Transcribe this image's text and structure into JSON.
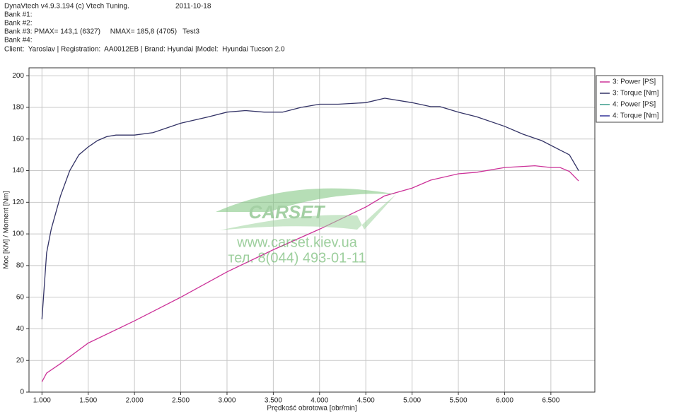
{
  "header": {
    "software": "DynaVtech v4.9.3.194 (c) Vtech Tuning.",
    "date": "2011-10-18",
    "bank1": "Bank #1:",
    "bank2": "Bank #2:",
    "bank3": "Bank #3: PMAX= 143,1 (6327)     NMAX= 185,8 (4705)   Test3",
    "bank4": "Bank #4:",
    "client": "Client:  Yaroslav | Registration:  AA0012EB | Brand: Hyundai |Model:  Hyundai Tucson 2.0"
  },
  "watermark": {
    "logo": "CARSET",
    "url": "www.carset.kiev.ua",
    "phone": "тел. 8(044) 493-01-11"
  },
  "chart_data": {
    "type": "line",
    "x_label": "Prędkość obrotowa [obr/min]",
    "y_label": "Moc [KM] / Moment [Nm]",
    "xlim": [
      860,
      6975
    ],
    "ylim": [
      0,
      205
    ],
    "grid": true,
    "legend": "top-right",
    "xticks": [
      {
        "value": 1000,
        "label": "1.000"
      },
      {
        "value": 1500,
        "label": "1.500"
      },
      {
        "value": 2000,
        "label": "2.000"
      },
      {
        "value": 2500,
        "label": "2.500"
      },
      {
        "value": 3000,
        "label": "3.000"
      },
      {
        "value": 3500,
        "label": "3.500"
      },
      {
        "value": 4000,
        "label": "4.000"
      },
      {
        "value": 4500,
        "label": "4.500"
      },
      {
        "value": 5000,
        "label": "5.000"
      },
      {
        "value": 5500,
        "label": "5.500"
      },
      {
        "value": 6000,
        "label": "6.000"
      },
      {
        "value": 6500,
        "label": "6.500"
      }
    ],
    "yticks": [
      0,
      20,
      40,
      60,
      80,
      100,
      120,
      140,
      160,
      180,
      200
    ],
    "series": [
      {
        "name": "3: Power [PS]",
        "color": "#cc3399",
        "x": [
          1000,
          1050,
          1200,
          1500,
          2000,
          2200,
          2500,
          3000,
          3500,
          4000,
          4500,
          4700,
          5000,
          5200,
          5500,
          5700,
          6000,
          6327,
          6500,
          6600,
          6700,
          6800
        ],
        "values": [
          6.5,
          12,
          18,
          31,
          45,
          51,
          60,
          76,
          90,
          103,
          117,
          124,
          129,
          134,
          138,
          139,
          142,
          143.1,
          142,
          142,
          139.5,
          133.5
        ]
      },
      {
        "name": "3: Torque [Nm]",
        "color": "#333366",
        "x": [
          1000,
          1050,
          1100,
          1200,
          1300,
          1400,
          1500,
          1600,
          1700,
          1800,
          2000,
          2200,
          2500,
          2800,
          3000,
          3200,
          3400,
          3600,
          3800,
          4000,
          4200,
          4500,
          4705,
          5000,
          5200,
          5300,
          5500,
          5700,
          6000,
          6200,
          6400,
          6600,
          6700,
          6800
        ],
        "values": [
          46,
          88,
          103,
          124,
          140,
          150,
          155,
          159,
          161.5,
          162.5,
          162.5,
          164,
          170,
          174,
          177,
          178,
          177,
          177,
          180,
          182,
          182,
          183,
          185.8,
          183,
          180.5,
          180.5,
          177,
          174,
          168,
          163,
          159,
          153,
          150,
          140
        ]
      },
      {
        "name": "4: Power [PS]",
        "color": "#3a9a8a",
        "x": [],
        "values": []
      },
      {
        "name": "4: Torque [Nm]",
        "color": "#333399",
        "x": [],
        "values": []
      }
    ]
  }
}
